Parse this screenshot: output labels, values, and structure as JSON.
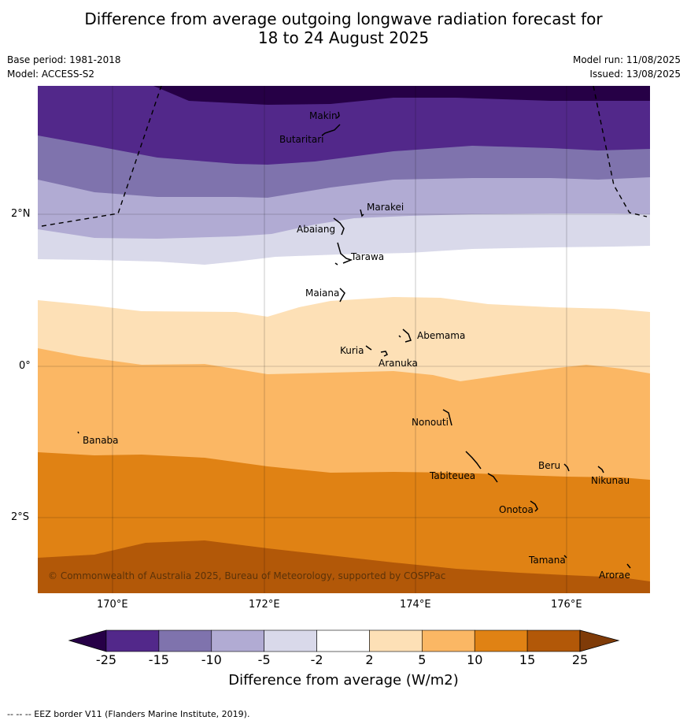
{
  "title_line1": "Difference from average outgoing longwave radiation forecast for",
  "title_line2": "18 to 24 August 2025",
  "base_period": "Base period: 1981-2018",
  "model": "Model: ACCESS-S2",
  "model_run": "Model run: 11/08/2025",
  "issued": "Issued: 13/08/2025",
  "copyright": "© Commonwealth of Australia 2025, Bureau of Meteorology, supported by COSPPac",
  "footnote": "-- -- -- EEZ border V11 (Flanders Marine Institute, 2019).",
  "lat_labels": [
    "2°N",
    "0°",
    "2°S"
  ],
  "lon_labels": [
    "170°E",
    "172°E",
    "174°E",
    "176°E"
  ],
  "colorbar": {
    "title": "Difference from average (W/m2)",
    "ticks": [
      "-25",
      "-15",
      "-10",
      "-5",
      "-2",
      "2",
      "5",
      "10",
      "15",
      "25"
    ],
    "colors": [
      "#260046",
      "#52288a",
      "#7f73ad",
      "#b1abd3",
      "#d9d9ea",
      "#ffffff",
      "#fde0b6",
      "#fbb764",
      "#e08214",
      "#b25808",
      "#7f3b08"
    ]
  },
  "places": [
    {
      "name": "Makin"
    },
    {
      "name": "Butaritari"
    },
    {
      "name": "Marakei"
    },
    {
      "name": "Abaiang"
    },
    {
      "name": "Tarawa"
    },
    {
      "name": "Maiana"
    },
    {
      "name": "Abemama"
    },
    {
      "name": "Kuria"
    },
    {
      "name": "Aranuka"
    },
    {
      "name": "Nonouti"
    },
    {
      "name": "Banaba"
    },
    {
      "name": "Beru"
    },
    {
      "name": "Tabiteuea"
    },
    {
      "name": "Nikunau"
    },
    {
      "name": "Onotoa"
    },
    {
      "name": "Tamana"
    },
    {
      "name": "Arorae"
    }
  ]
}
